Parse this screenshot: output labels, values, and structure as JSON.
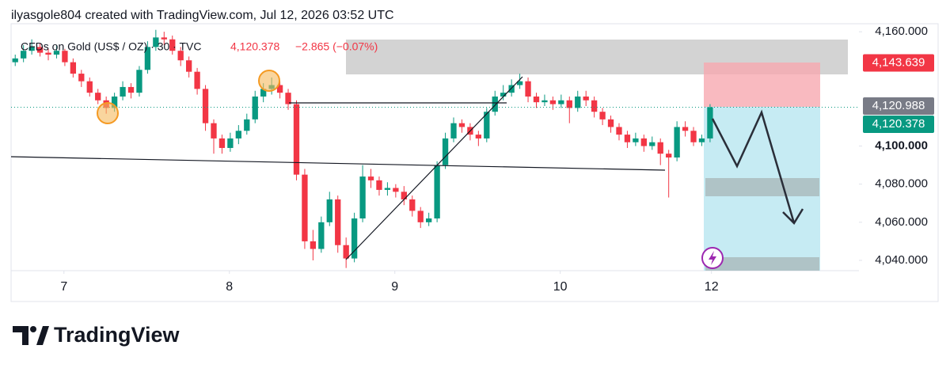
{
  "header": "ilyasgole804 created with TradingView.com, Jul 12, 2026 03:52 UTC",
  "brand": "TradingView",
  "chart_data": {
    "type": "candlestick",
    "symbol": "CFDs on Gold (US$ / OZ) · 30 · TVC",
    "last_price": "4,120.378",
    "change": "−2.865 (−0.07%)",
    "up_color": "#089981",
    "down_color": "#f23645",
    "xlim": [
      0,
      102.5
    ],
    "xticks": [
      {
        "value": 6.39,
        "label": "7"
      },
      {
        "value": 26.39,
        "label": "8"
      },
      {
        "value": 46.39,
        "label": "9"
      },
      {
        "value": 66.39,
        "label": "10"
      },
      {
        "value": 84.67,
        "label": "12"
      }
    ],
    "ylim": [
      4034.6,
      4164.2
    ],
    "yticks": [
      {
        "value": 4160,
        "label": "4,160.000"
      },
      {
        "value": 4100,
        "label": "4,100.000"
      },
      {
        "value": 4080,
        "label": "4,080.000"
      },
      {
        "value": 4060,
        "label": "4,060.000"
      },
      {
        "value": 4040,
        "label": "4,040.000"
      }
    ],
    "price_tags": [
      {
        "value": 4143.639,
        "label": "4,143.639",
        "color": "#f23645"
      },
      {
        "value": 4120.988,
        "label": "4,120.988",
        "color": "#787b86"
      },
      {
        "value": 4120.378,
        "label": "4,120.378",
        "color": "#089981"
      }
    ],
    "open": [
      4144,
      4146,
      4150,
      4152,
      4149,
      4148,
      4150,
      4144,
      4138,
      4134,
      4128,
      4124,
      4120,
      4126,
      4131,
      4128,
      4140,
      4152,
      4157,
      4156,
      4150,
      4145,
      4139,
      4130,
      4112,
      4104,
      4099,
      4104,
      4108,
      4114,
      4126,
      4130,
      4132,
      4128,
      4122,
      4085,
      4050,
      4046,
      4060,
      4072,
      4048,
      4041,
      4062,
      4084,
      4082,
      4077,
      4078,
      4076,
      4072,
      4066,
      4060,
      4062,
      4090,
      4104,
      4112,
      4110,
      4106,
      4104,
      4118,
      4126,
      4128,
      4132,
      4134,
      4126,
      4123,
      4124,
      4122,
      4124,
      4120,
      4126,
      4124,
      4118,
      4114,
      4110,
      4106,
      4102,
      4104,
      4100,
      4102,
      4096,
      4094,
      4110,
      4108,
      4102,
      4104
    ],
    "high": [
      4148,
      4153,
      4156,
      4154,
      4151,
      4153,
      4151,
      4146,
      4140,
      4136,
      4130,
      4126,
      4128,
      4134,
      4133,
      4142,
      4155,
      4161,
      4160,
      4158,
      4152,
      4147,
      4141,
      4132,
      4114,
      4106,
      4107,
      4111,
      4117,
      4129,
      4133,
      4136,
      4134,
      4130,
      4124,
      4088,
      4056,
      4063,
      4076,
      4074,
      4052,
      4065,
      4090,
      4088,
      4084,
      4081,
      4080,
      4079,
      4074,
      4068,
      4065,
      4092,
      4107,
      4115,
      4114,
      4112,
      4108,
      4120,
      4129,
      4132,
      4135,
      4138,
      4136,
      4128,
      4127,
      4126,
      4127,
      4126,
      4129,
      4129,
      4126,
      4120,
      4116,
      4112,
      4108,
      4107,
      4106,
      4105,
      4104,
      4098,
      4113,
      4113,
      4110,
      4106,
      4122
    ],
    "low": [
      4142,
      4144,
      4148,
      4147,
      4145,
      4146,
      4142,
      4136,
      4131,
      4126,
      4122,
      4117,
      4118,
      4124,
      4125,
      4126,
      4138,
      4150,
      4153,
      4148,
      4142,
      4136,
      4127,
      4108,
      4096,
      4096,
      4097,
      4101,
      4106,
      4112,
      4123,
      4127,
      4125,
      4119,
      4082,
      4046,
      4040,
      4044,
      4058,
      4044,
      4036,
      4039,
      4060,
      4078,
      4074,
      4074,
      4073,
      4069,
      4063,
      4057,
      4058,
      4060,
      4088,
      4102,
      4107,
      4103,
      4100,
      4102,
      4116,
      4124,
      4126,
      4130,
      4123,
      4120,
      4121,
      4119,
      4120,
      4112,
      4118,
      4121,
      4115,
      4111,
      4107,
      4103,
      4099,
      4100,
      4097,
      4098,
      4090,
      4073,
      4092,
      4105,
      4100,
      4100,
      4102
    ],
    "close": [
      4146,
      4150,
      4152,
      4149,
      4148,
      4150,
      4144,
      4138,
      4134,
      4128,
      4124,
      4120,
      4126,
      4131,
      4128,
      4140,
      4152,
      4157,
      4156,
      4150,
      4145,
      4139,
      4130,
      4112,
      4104,
      4099,
      4104,
      4108,
      4114,
      4126,
      4130,
      4132,
      4128,
      4122,
      4085,
      4050,
      4046,
      4060,
      4072,
      4048,
      4041,
      4062,
      4084,
      4082,
      4077,
      4078,
      4076,
      4072,
      4066,
      4060,
      4062,
      4090,
      4104,
      4112,
      4110,
      4106,
      4104,
      4118,
      4126,
      4128,
      4132,
      4134,
      4126,
      4123,
      4124,
      4122,
      4124,
      4120,
      4126,
      4124,
      4118,
      4114,
      4110,
      4106,
      4102,
      4104,
      4100,
      4102,
      4096,
      4094,
      4110,
      4108,
      4102,
      4104,
      4120.378
    ]
  }
}
